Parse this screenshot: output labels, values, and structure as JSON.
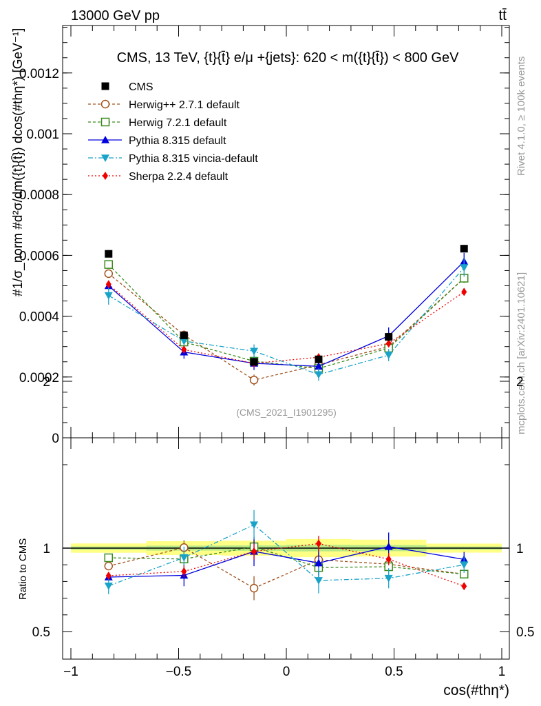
{
  "header": {
    "left": "13000 GeV pp",
    "right": "tt̄"
  },
  "side_labels": {
    "rivet": "Rivet 4.1.0, ≥ 100k events",
    "mcplots": "mcplots.cern.ch [arXiv:2401.10621]"
  },
  "chart_data": {
    "type": "line",
    "title": "CMS, 13 TeV, {t}{t̄} e/μ +{jets}: 620 < m({t}{t̄}) < 800 GeV",
    "analysis_id": "(CMS_2021_I1901295)",
    "xlabel": "cos(#thη*)",
    "ylabel": "#1/σ_norm #d²σ/dm({t}{t̄}) dcos(#thη*) [GeV⁻¹]",
    "ratio_ylabel": "Ratio to CMS",
    "xlim": [
      -1.0,
      1.0
    ],
    "ylim": [
      0,
      0.00135
    ],
    "ratio_ylim": [
      0.35,
      2.3
    ],
    "x_ticks": [
      "−1",
      "−0.5",
      "0",
      "0.5",
      "1"
    ],
    "x_tick_values": [
      -1,
      -0.5,
      0,
      0.5,
      1
    ],
    "y_ticks": [
      "0",
      "0.0002",
      "0.0004",
      "0.0006",
      "0.0008",
      "0.001",
      "0.0012"
    ],
    "y_tick_values": [
      0,
      0.0002,
      0.0004,
      0.0006,
      0.0008,
      0.001,
      0.0012
    ],
    "ratio_ticks": [
      "0.5",
      "1",
      "2"
    ],
    "ratio_tick_values": [
      0.5,
      1,
      2
    ],
    "x": [
      -0.825,
      -0.475,
      -0.15,
      0.15,
      0.475,
      0.825
    ],
    "x_bin_edges": [
      -1.0,
      -0.65,
      -0.3,
      0.0,
      0.3,
      0.65,
      1.0
    ],
    "data": {
      "name": "CMS",
      "color": "#000000",
      "values": [
        0.000605,
        0.000337,
        0.00025,
        0.000258,
        0.000332,
        0.000622
      ],
      "errors": [
        1.2e-05,
        1e-05,
        8e-06,
        1e-05,
        1.2e-05,
        1.2e-05
      ]
    },
    "series": [
      {
        "name": "Herwig++ 2.7.1 default",
        "color": "#a0521e",
        "marker": "open-circle",
        "dash": "4,3",
        "values": [
          0.00054,
          0.000338,
          0.00019,
          0.00024,
          0.0003,
          0.000525
        ],
        "errors": [
          1e-05,
          1.5e-05,
          1.8e-05,
          1.2e-05,
          1.2e-05,
          1.5e-05
        ]
      },
      {
        "name": "Herwig 7.2.1 default",
        "color": "#3a8a1a",
        "marker": "open-square",
        "dash": "4,3",
        "values": [
          0.00057,
          0.000315,
          0.000252,
          0.000228,
          0.000295,
          0.000525
        ],
        "errors": [
          1.2e-05,
          1.2e-05,
          1.2e-05,
          1.2e-05,
          1.2e-05,
          1.5e-05
        ]
      },
      {
        "name": "Pythia 8.315 default",
        "color": "#0000dd",
        "marker": "filled-triangle-up",
        "dash": "",
        "values": [
          0.0005,
          0.000282,
          0.000245,
          0.000235,
          0.000335,
          0.00058
        ],
        "errors": [
          1.5e-05,
          2.2e-05,
          2.2e-05,
          2.2e-05,
          2.8e-05,
          2.8e-05
        ]
      },
      {
        "name": "Pythia 8.315 vincia-default",
        "color": "#1aa3c8",
        "marker": "filled-triangle-down",
        "dash": "7,3,2,3",
        "values": [
          0.000468,
          0.000318,
          0.000285,
          0.000208,
          0.000272,
          0.00056
        ],
        "errors": [
          3e-05,
          2.2e-05,
          2.2e-05,
          2e-05,
          2e-05,
          3e-05
        ]
      },
      {
        "name": "Sherpa 2.2.4 default",
        "color": "#ee0000",
        "marker": "filled-diamond",
        "dash": "2,3",
        "values": [
          0.000505,
          0.00029,
          0.000245,
          0.000265,
          0.00031,
          0.00048
        ],
        "errors": [
          1.2e-05,
          1.2e-05,
          1.2e-05,
          1.2e-05,
          1.2e-05,
          1.2e-05
        ]
      }
    ],
    "ratio": {
      "band_color": "#ffff66",
      "band_core_color": "#b8e986"
    }
  }
}
